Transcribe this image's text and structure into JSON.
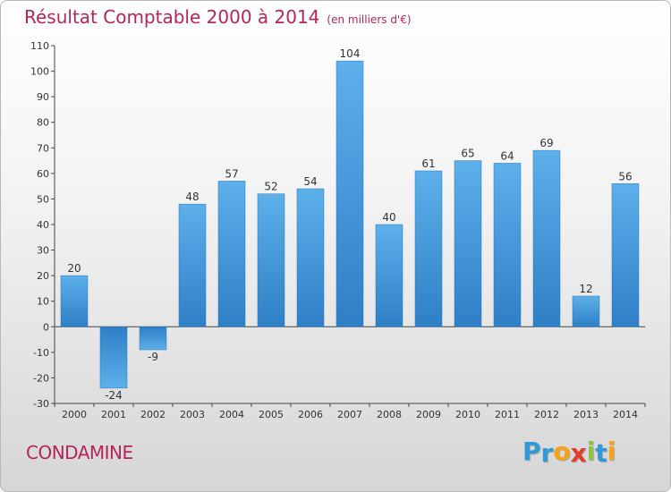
{
  "chart_data": {
    "type": "bar",
    "title": "Résultat Comptable 2000 à 2014",
    "subtitle": "(en milliers d'€)",
    "categories": [
      "2000",
      "2001",
      "2002",
      "2003",
      "2004",
      "2005",
      "2006",
      "2007",
      "2008",
      "2009",
      "2010",
      "2011",
      "2012",
      "2013",
      "2014"
    ],
    "values": [
      20,
      -24,
      -9,
      48,
      57,
      52,
      54,
      104,
      40,
      61,
      65,
      64,
      69,
      12,
      56
    ],
    "ylim": [
      -30,
      110
    ],
    "yticks": [
      -30,
      -20,
      -10,
      0,
      10,
      20,
      30,
      40,
      50,
      60,
      70,
      80,
      90,
      100,
      110
    ],
    "xlabel": "",
    "ylabel": "",
    "grid": false,
    "bar_color": "#3c8fd6"
  },
  "commune": "CONDAMINE",
  "brand": {
    "letters": [
      "P",
      "r",
      "o",
      "x",
      "i",
      "t",
      "i"
    ],
    "colors": [
      "#2e9ad8",
      "#2e9ad8",
      "#f7a21b",
      "#e23d28",
      "#8cc43e",
      "#2e9ad8",
      "#f7a21b"
    ]
  }
}
